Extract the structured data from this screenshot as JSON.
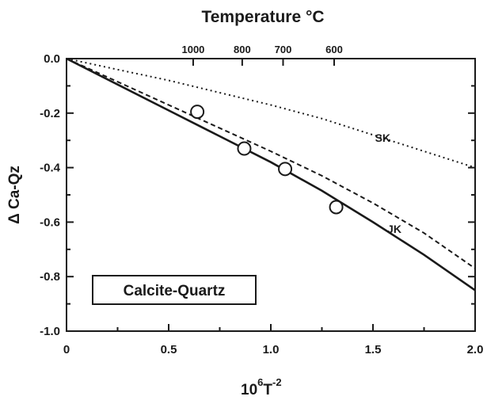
{
  "chart_data": {
    "type": "line",
    "title": "Temperature °C",
    "xlabel": "10",
    "xlabel_sup1": "6",
    "xlabel_t": "T",
    "xlabel_sup2": "-2",
    "ylabel": "Δ Ca-Qz",
    "xlim": [
      0,
      2.0
    ],
    "ylim": [
      -1.0,
      0.0
    ],
    "x_ticks": [
      "0",
      "0.5",
      "1.0",
      "1.5",
      "2.0"
    ],
    "y_ticks": [
      "0.0",
      "-0.2",
      "-0.4",
      "-0.6",
      "-0.8",
      "-1.0"
    ],
    "top_axis": {
      "label": "Temperature °C",
      "ticks": [
        {
          "label": "1000",
          "x": 0.62
        },
        {
          "label": "800",
          "x": 0.86
        },
        {
          "label": "700",
          "x": 1.06
        },
        {
          "label": "600",
          "x": 1.31
        }
      ]
    },
    "series": [
      {
        "style": "solid",
        "x": [
          0,
          0.25,
          0.5,
          0.75,
          1.0,
          1.25,
          1.5,
          1.75,
          2.0
        ],
        "y": [
          0,
          -0.095,
          -0.19,
          -0.285,
          -0.38,
          -0.485,
          -0.6,
          -0.72,
          -0.85
        ]
      },
      {
        "name": "JK",
        "style": "dashed",
        "x": [
          0,
          0.25,
          0.5,
          0.75,
          1.0,
          1.25,
          1.5,
          1.75,
          2.0
        ],
        "y": [
          0,
          -0.085,
          -0.17,
          -0.255,
          -0.34,
          -0.43,
          -0.53,
          -0.64,
          -0.77
        ]
      },
      {
        "name": "SK",
        "style": "dotted",
        "x": [
          0,
          0.25,
          0.5,
          0.75,
          1.0,
          1.25,
          1.5,
          1.75,
          2.0
        ],
        "y": [
          0,
          -0.04,
          -0.08,
          -0.125,
          -0.17,
          -0.22,
          -0.28,
          -0.34,
          -0.4
        ]
      },
      {
        "style": "open-circles",
        "x": [
          0.64,
          0.87,
          1.07,
          1.32
        ],
        "y": [
          -0.195,
          -0.33,
          -0.405,
          -0.545
        ]
      }
    ],
    "series_labels": [
      {
        "text": "SK",
        "x": 1.51,
        "y": -0.305
      },
      {
        "text": "JK",
        "x": 1.57,
        "y": -0.64
      }
    ],
    "annotation": {
      "text": "Calcite-Quartz"
    },
    "grid": false
  }
}
